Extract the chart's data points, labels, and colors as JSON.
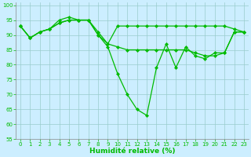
{
  "xlabel": "Humidité relative (%)",
  "x": [
    0,
    1,
    2,
    3,
    4,
    5,
    6,
    7,
    8,
    9,
    10,
    11,
    12,
    13,
    14,
    15,
    16,
    17,
    18,
    19,
    20,
    21,
    22,
    23
  ],
  "series": [
    [
      93,
      89,
      91,
      92,
      95,
      96,
      95,
      95,
      91,
      87,
      93,
      93,
      93,
      93,
      93,
      93,
      93,
      93,
      93,
      93,
      93,
      93,
      92,
      91
    ],
    [
      93,
      89,
      91,
      92,
      94,
      95,
      95,
      95,
      90,
      87,
      86,
      85,
      85,
      85,
      85,
      85,
      85,
      85,
      84,
      83,
      83,
      84,
      91,
      91
    ],
    [
      93,
      89,
      91,
      92,
      94,
      95,
      95,
      95,
      90,
      86,
      77,
      70,
      65,
      63,
      79,
      87,
      79,
      86,
      83,
      82,
      84,
      84,
      91,
      91
    ]
  ],
  "bg_color": "#cceeff",
  "grid_color": "#99cccc",
  "line_color": "#00bb00",
  "marker": "D",
  "marker_size": 2.2,
  "linewidth": 0.9,
  "ylim": [
    55,
    101
  ],
  "yticks": [
    55,
    60,
    65,
    70,
    75,
    80,
    85,
    90,
    95,
    100
  ],
  "xlim": [
    -0.5,
    23.5
  ],
  "xticks": [
    0,
    1,
    2,
    3,
    4,
    5,
    6,
    7,
    8,
    9,
    10,
    11,
    12,
    13,
    14,
    15,
    16,
    17,
    18,
    19,
    20,
    21,
    22,
    23
  ],
  "tick_fontsize": 5.0,
  "xlabel_fontsize": 6.5
}
